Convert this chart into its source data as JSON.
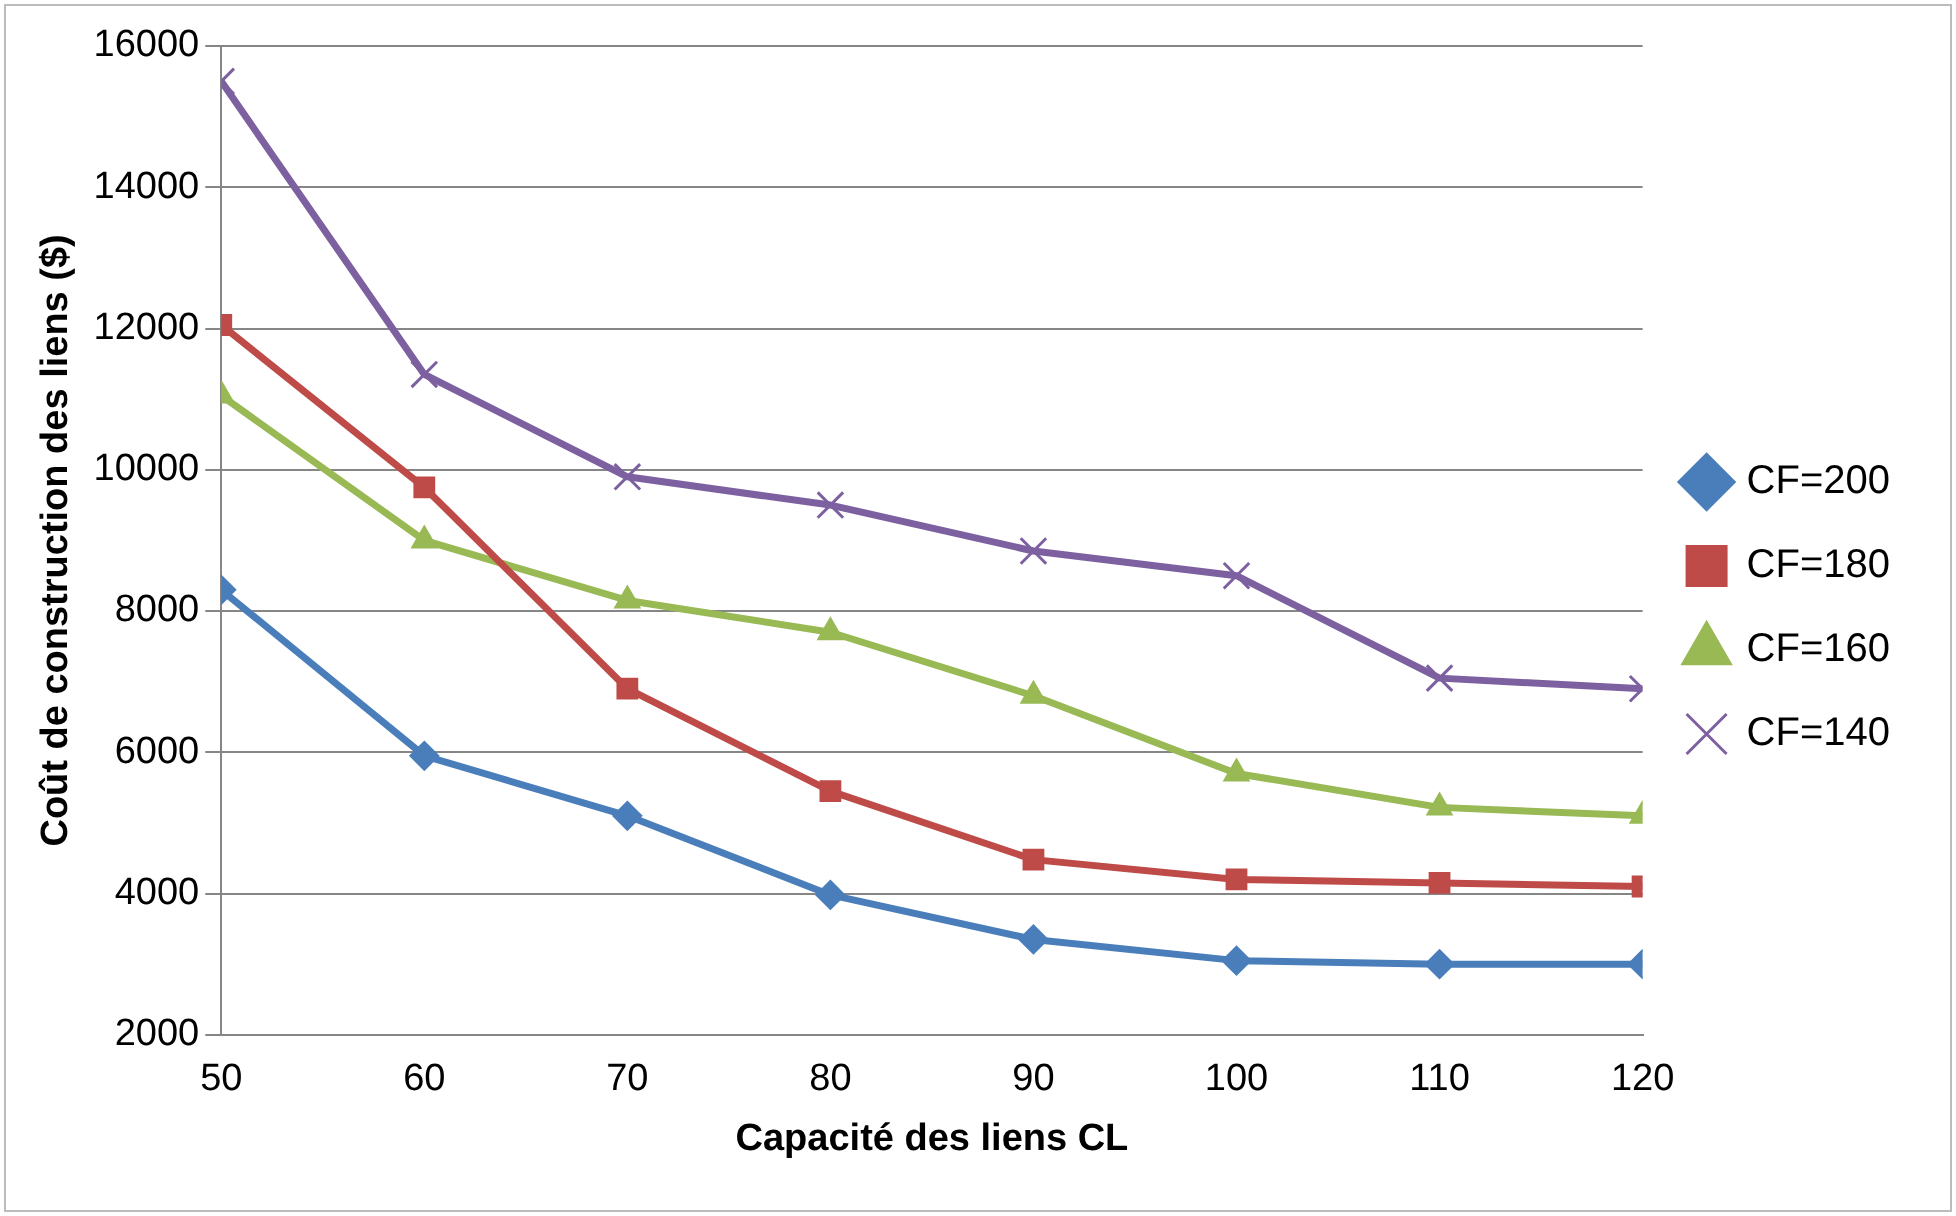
{
  "chart_data": {
    "type": "line",
    "xlabel": "Capacité des liens CL",
    "ylabel": "Coût de construction des liens ($)",
    "x": [
      50,
      60,
      70,
      80,
      90,
      100,
      110,
      120
    ],
    "xlim": [
      50,
      120
    ],
    "xticks": [
      50,
      60,
      70,
      80,
      90,
      100,
      110,
      120
    ],
    "ylim": [
      2000,
      16000
    ],
    "yticks": [
      2000,
      4000,
      6000,
      8000,
      10000,
      12000,
      14000,
      16000
    ],
    "grid": "y",
    "legend": "right",
    "series": [
      {
        "name": "CF=200",
        "color": "#4a7ebb",
        "marker": "diamond",
        "values": [
          8300,
          5950,
          5100,
          3980,
          3350,
          3050,
          3000,
          3000
        ]
      },
      {
        "name": "CF=180",
        "color": "#be4b48",
        "marker": "square",
        "values": [
          12050,
          9750,
          6900,
          5450,
          4480,
          4200,
          4150,
          4100
        ]
      },
      {
        "name": "CF=160",
        "color": "#98b954",
        "marker": "triangle",
        "values": [
          11050,
          9000,
          8150,
          7700,
          6800,
          5700,
          5220,
          5100
        ]
      },
      {
        "name": "CF=140",
        "color": "#7d60a0",
        "marker": "cross",
        "values": [
          15500,
          11350,
          9900,
          9500,
          8850,
          8500,
          7050,
          6900
        ]
      }
    ]
  }
}
